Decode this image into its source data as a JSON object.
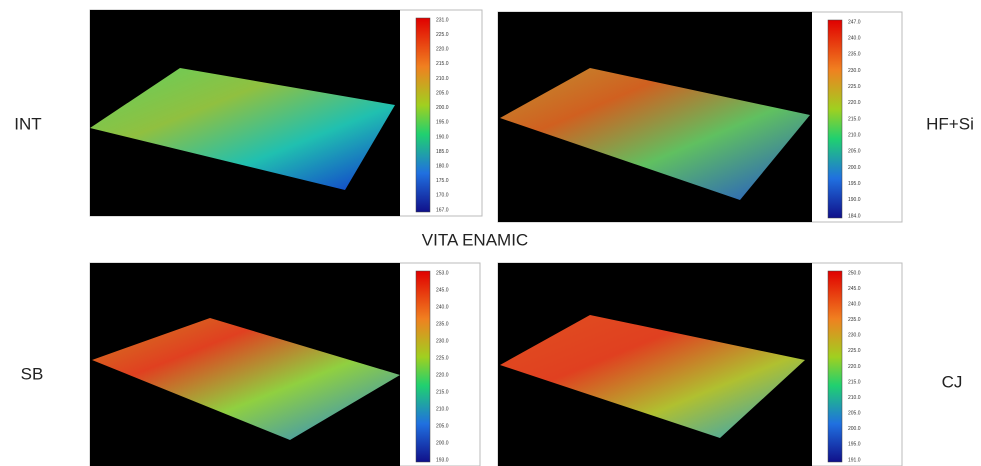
{
  "title": "VITA ENAMIC",
  "panels": [
    {
      "label": "INT",
      "scale": [
        "231.0",
        "225.0",
        "220.0",
        "215.0",
        "210.0",
        "205.0",
        "200.0",
        "195.0",
        "190.0",
        "185.0",
        "180.0",
        "175.0",
        "170.0",
        "167.0"
      ]
    },
    {
      "label": "HF+Si",
      "scale": [
        "247.0",
        "240.0",
        "235.0",
        "230.0",
        "225.0",
        "220.0",
        "215.0",
        "210.0",
        "205.0",
        "200.0",
        "195.0",
        "190.0",
        "184.0"
      ]
    },
    {
      "label": "SB",
      "scale": [
        "253.0",
        "245.0",
        "240.0",
        "235.0",
        "230.0",
        "225.0",
        "220.0",
        "215.0",
        "210.0",
        "205.0",
        "200.0",
        "193.0"
      ]
    },
    {
      "label": "CJ",
      "scale": [
        "250.0",
        "245.0",
        "240.0",
        "235.0",
        "230.0",
        "225.0",
        "220.0",
        "215.0",
        "210.0",
        "205.0",
        "200.0",
        "195.0",
        "191.0"
      ]
    }
  ]
}
